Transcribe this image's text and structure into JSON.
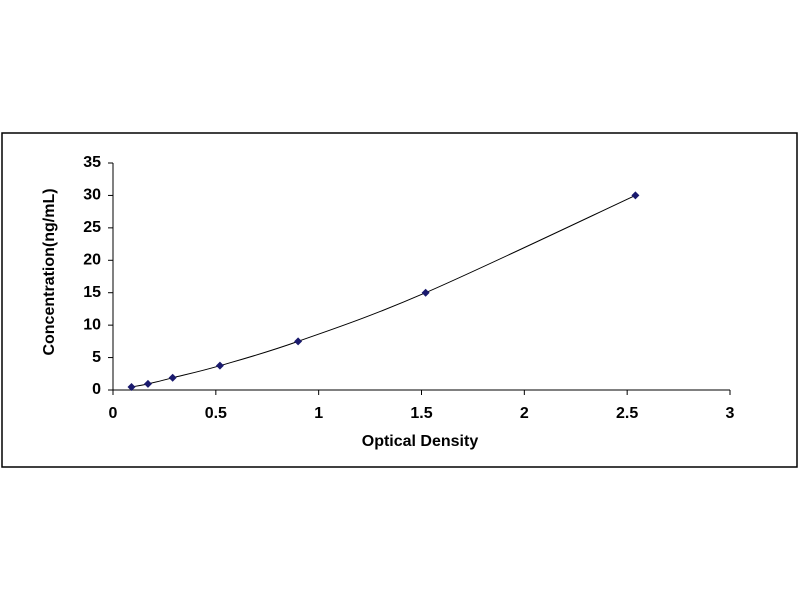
{
  "chart_data": {
    "type": "scatter",
    "x_label": "Optical Density",
    "y_label": "Concentration(ng/mL)",
    "series": [
      {
        "color": "#1a1a6e",
        "x": [
          0.09,
          0.17,
          0.29,
          0.52,
          0.9,
          1.52,
          2.54
        ],
        "values": [
          0.47,
          0.94,
          1.88,
          3.75,
          7.5,
          15,
          30
        ]
      }
    ],
    "xlim": [
      0,
      3
    ],
    "xticks": [
      0,
      0.5,
      1,
      1.5,
      2,
      2.5,
      3
    ],
    "ylim": [
      0,
      35
    ],
    "yticks": [
      0,
      5,
      10,
      15,
      20,
      25,
      30,
      35
    ],
    "grid": false,
    "trendline": true
  }
}
